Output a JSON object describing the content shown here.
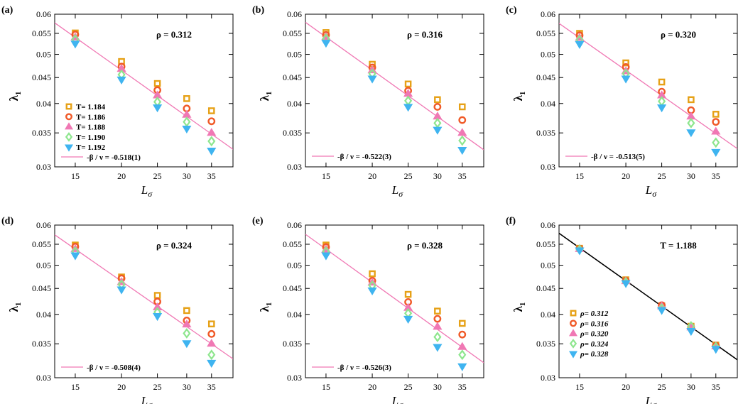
{
  "figure": {
    "description_free": true
  },
  "chart_data": [
    {
      "panel_label": "(a)",
      "type": "scatter",
      "scale": "log-log",
      "title": "",
      "xlabel": "L",
      "xlabel_sub": "σ",
      "ylabel": "λ",
      "ylabel_sub": "1",
      "annotation": "ρ = 0.312",
      "xticks": [
        15,
        20,
        25,
        30,
        35
      ],
      "yticks": [
        0.03,
        0.035,
        0.04,
        0.045,
        0.05,
        0.055,
        0.06
      ],
      "ytick_labels": [
        "0.03",
        "0.035",
        "0.04",
        "0.045",
        "0.05",
        "0.055",
        "0.06"
      ],
      "xlim": [
        13.2,
        40
      ],
      "ylim": [
        0.03,
        0.06
      ],
      "x": [
        15,
        20,
        25,
        30,
        35
      ],
      "series": [
        {
          "name": "T= 1.184",
          "marker": "square",
          "color": "#e6a117",
          "values": [
            0.0551,
            0.0484,
            0.0438,
            0.0409,
            0.0387
          ]
        },
        {
          "name": "T= 1.186",
          "marker": "circle",
          "color": "#f05a28",
          "values": [
            0.0547,
            0.0473,
            0.0425,
            0.0391,
            0.0369
          ]
        },
        {
          "name": "T= 1.188",
          "marker": "triangle-up",
          "color": "#f078b4",
          "values": [
            0.054,
            0.0468,
            0.0415,
            0.038,
            0.035
          ]
        },
        {
          "name": "T= 1.190",
          "marker": "diamond",
          "color": "#8ee68e",
          "values": [
            0.0535,
            0.0456,
            0.0403,
            0.0368,
            0.0337
          ]
        },
        {
          "name": "T= 1.192",
          "marker": "triangle-down",
          "color": "#3fb4f0",
          "values": [
            0.0525,
            0.0446,
            0.0393,
            0.0357,
            0.0323
          ]
        }
      ],
      "fit": {
        "label": "-β / ν = -0.518(1)",
        "color": "#f078b4",
        "y_at_15": 0.054,
        "exponent": -0.518
      },
      "legend": "left-bottom"
    },
    {
      "panel_label": "(b)",
      "type": "scatter",
      "scale": "log-log",
      "title": "",
      "xlabel": "L",
      "xlabel_sub": "σ",
      "ylabel": "λ",
      "ylabel_sub": "1",
      "annotation": "ρ = 0.316",
      "xticks": [
        15,
        20,
        25,
        30,
        35
      ],
      "yticks": [
        0.03,
        0.035,
        0.04,
        0.045,
        0.05,
        0.055,
        0.06
      ],
      "ytick_labels": [
        "0.03",
        "0.035",
        "0.04",
        "0.045",
        "0.05",
        "0.055",
        "0.06"
      ],
      "xlim": [
        13.2,
        40
      ],
      "ylim": [
        0.03,
        0.06
      ],
      "x": [
        15,
        20,
        25,
        30,
        35
      ],
      "series": [
        {
          "name": "T= 1.184",
          "marker": "square",
          "color": "#e6a117",
          "values": [
            0.0552,
            0.0478,
            0.0437,
            0.0407,
            0.0394
          ]
        },
        {
          "name": "T= 1.186",
          "marker": "circle",
          "color": "#f05a28",
          "values": [
            0.0546,
            0.0471,
            0.0424,
            0.0394,
            0.0371
          ]
        },
        {
          "name": "T= 1.188",
          "marker": "triangle-up",
          "color": "#f078b4",
          "values": [
            0.0541,
            0.0465,
            0.0418,
            0.0377,
            0.035
          ]
        },
        {
          "name": "T= 1.190",
          "marker": "diamond",
          "color": "#8ee68e",
          "values": [
            0.0537,
            0.0458,
            0.0405,
            0.0366,
            0.0338
          ]
        },
        {
          "name": "T= 1.192",
          "marker": "triangle-down",
          "color": "#3fb4f0",
          "values": [
            0.0527,
            0.0448,
            0.0394,
            0.0355,
            0.0324
          ]
        }
      ],
      "fit": {
        "label": "-β / ν = -0.522(3)",
        "color": "#f078b4",
        "y_at_15": 0.0541,
        "exponent": -0.522
      },
      "legend": "left-bottom"
    },
    {
      "panel_label": "(c)",
      "type": "scatter",
      "scale": "log-log",
      "title": "",
      "xlabel": "L",
      "xlabel_sub": "σ",
      "ylabel": "λ",
      "ylabel_sub": "1",
      "annotation": "ρ = 0.320",
      "xticks": [
        15,
        20,
        25,
        30,
        35
      ],
      "yticks": [
        0.03,
        0.035,
        0.04,
        0.045,
        0.05,
        0.055,
        0.06
      ],
      "ytick_labels": [
        "0.03",
        "0.035",
        "0.04",
        "0.045",
        "0.05",
        "0.055",
        "0.06"
      ],
      "xlim": [
        13.2,
        40
      ],
      "ylim": [
        0.03,
        0.06
      ],
      "x": [
        15,
        20,
        25,
        30,
        35
      ],
      "series": [
        {
          "name": "T= 1.184",
          "marker": "square",
          "color": "#e6a117",
          "values": [
            0.055,
            0.0481,
            0.0441,
            0.0407,
            0.0381
          ]
        },
        {
          "name": "T= 1.186",
          "marker": "circle",
          "color": "#f05a28",
          "values": [
            0.0545,
            0.0472,
            0.0422,
            0.0388,
            0.0368
          ]
        },
        {
          "name": "T= 1.188",
          "marker": "triangle-up",
          "color": "#f078b4",
          "values": [
            0.0539,
            0.0463,
            0.0415,
            0.0377,
            0.0352
          ]
        },
        {
          "name": "T= 1.190",
          "marker": "diamond",
          "color": "#8ee68e",
          "values": [
            0.0534,
            0.0458,
            0.0404,
            0.0366,
            0.0335
          ]
        },
        {
          "name": "T= 1.192",
          "marker": "triangle-down",
          "color": "#3fb4f0",
          "values": [
            0.0524,
            0.0448,
            0.0393,
            0.0351,
            0.0321
          ]
        }
      ],
      "fit": {
        "label": "-β / ν = -0.513(5)",
        "color": "#f078b4",
        "y_at_15": 0.0539,
        "exponent": -0.513
      },
      "legend": "left-bottom"
    },
    {
      "panel_label": "(d)",
      "type": "scatter",
      "scale": "log-log",
      "title": "",
      "xlabel": "L",
      "xlabel_sub": "σ",
      "ylabel": "λ",
      "ylabel_sub": "1",
      "annotation": "ρ = 0.324",
      "xticks": [
        15,
        20,
        25,
        30,
        35
      ],
      "yticks": [
        0.03,
        0.035,
        0.04,
        0.045,
        0.05,
        0.055,
        0.06
      ],
      "ytick_labels": [
        "0.03",
        "0.035",
        "0.04",
        "0.045",
        "0.05",
        "0.055",
        "0.06"
      ],
      "xlim": [
        13.2,
        40
      ],
      "ylim": [
        0.03,
        0.06
      ],
      "x": [
        15,
        20,
        25,
        30,
        35
      ],
      "series": [
        {
          "name": "T= 1.184",
          "marker": "square",
          "color": "#e6a117",
          "values": [
            0.0548,
            0.0474,
            0.0436,
            0.0407,
            0.0383
          ]
        },
        {
          "name": "T= 1.186",
          "marker": "circle",
          "color": "#f05a28",
          "values": [
            0.0544,
            0.0471,
            0.0424,
            0.0389,
            0.0366
          ]
        },
        {
          "name": "T= 1.188",
          "marker": "triangle-up",
          "color": "#f078b4",
          "values": [
            0.0538,
            0.0463,
            0.0413,
            0.0382,
            0.035
          ]
        },
        {
          "name": "T= 1.190",
          "marker": "diamond",
          "color": "#8ee68e",
          "values": [
            0.0532,
            0.0458,
            0.0404,
            0.0367,
            0.0333
          ]
        },
        {
          "name": "T= 1.192",
          "marker": "triangle-down",
          "color": "#3fb4f0",
          "values": [
            0.0523,
            0.0448,
            0.0397,
            0.0351,
            0.0321
          ]
        }
      ],
      "fit": {
        "label": "-β / ν = -0.508(4)",
        "color": "#f078b4",
        "y_at_15": 0.0538,
        "exponent": -0.508
      },
      "legend": "left-bottom"
    },
    {
      "panel_label": "(e)",
      "type": "scatter",
      "scale": "log-log",
      "title": "",
      "xlabel": "L",
      "xlabel_sub": "σ",
      "ylabel": "λ",
      "ylabel_sub": "1",
      "annotation": "ρ = 0.328",
      "xticks": [
        15,
        20,
        25,
        30,
        35
      ],
      "yticks": [
        0.03,
        0.035,
        0.04,
        0.045,
        0.05,
        0.055,
        0.06
      ],
      "ytick_labels": [
        "0.03",
        "0.035",
        "0.04",
        "0.045",
        "0.05",
        "0.055",
        "0.06"
      ],
      "xlim": [
        13.2,
        40
      ],
      "ylim": [
        0.03,
        0.06
      ],
      "x": [
        15,
        20,
        25,
        30,
        35
      ],
      "series": [
        {
          "name": "T= 1.184",
          "marker": "square",
          "color": "#e6a117",
          "values": [
            0.0548,
            0.0481,
            0.0438,
            0.0406,
            0.0384
          ]
        },
        {
          "name": "T= 1.186",
          "marker": "circle",
          "color": "#f05a28",
          "values": [
            0.0543,
            0.0466,
            0.0423,
            0.0392,
            0.0365
          ]
        },
        {
          "name": "T= 1.188",
          "marker": "triangle-up",
          "color": "#f078b4",
          "values": [
            0.0537,
            0.0462,
            0.0412,
            0.0378,
            0.0345
          ]
        },
        {
          "name": "T= 1.190",
          "marker": "diamond",
          "color": "#8ee68e",
          "values": [
            0.0532,
            0.0456,
            0.0402,
            0.0361,
            0.0333
          ]
        },
        {
          "name": "T= 1.192",
          "marker": "triangle-down",
          "color": "#3fb4f0",
          "values": [
            0.0523,
            0.0446,
            0.0392,
            0.0345,
            0.0316
          ]
        }
      ],
      "fit": {
        "label": "-β / ν = -0.526(3)",
        "color": "#f078b4",
        "y_at_15": 0.0538,
        "exponent": -0.526
      },
      "legend": "left-bottom"
    },
    {
      "panel_label": "(f)",
      "type": "scatter",
      "scale": "log-log",
      "title": "",
      "xlabel": "L",
      "xlabel_sub": "σ",
      "ylabel": "λ",
      "ylabel_sub": "1",
      "annotation": "T = 1.188",
      "xticks": [
        15,
        20,
        25,
        30,
        35
      ],
      "yticks": [
        0.03,
        0.035,
        0.04,
        0.045,
        0.05,
        0.055,
        0.06
      ],
      "ytick_labels": [
        "0.03",
        "0.035",
        "0.04",
        "0.045",
        "0.05",
        "0.055",
        "0.06"
      ],
      "xlim": [
        13.2,
        40
      ],
      "ylim": [
        0.03,
        0.06
      ],
      "x": [
        15,
        20,
        25,
        30,
        35
      ],
      "series": [
        {
          "name": "ρ= 0.312",
          "marker": "square",
          "color": "#e6a117",
          "values": [
            0.054,
            0.0468,
            0.0416,
            0.0379,
            0.0348
          ]
        },
        {
          "name": "ρ= 0.316",
          "marker": "circle",
          "color": "#f05a28",
          "values": [
            0.0539,
            0.0466,
            0.0417,
            0.0378,
            0.0347
          ]
        },
        {
          "name": "ρ= 0.320",
          "marker": "triangle-up",
          "color": "#f078b4",
          "values": [
            0.0538,
            0.0465,
            0.0415,
            0.0377,
            0.0346
          ]
        },
        {
          "name": "ρ= 0.324",
          "marker": "diamond",
          "color": "#8ee68e",
          "values": [
            0.0537,
            0.0463,
            0.0411,
            0.0379,
            0.0345
          ]
        },
        {
          "name": "ρ= 0.328",
          "marker": "triangle-down",
          "color": "#3fb4f0",
          "values": [
            0.0535,
            0.0461,
            0.0408,
            0.0371,
            0.0342
          ]
        }
      ],
      "fit": {
        "label": "",
        "color": "#000000",
        "y_at_15": 0.0541,
        "exponent": -0.518
      },
      "legend": "left-bottom"
    }
  ]
}
